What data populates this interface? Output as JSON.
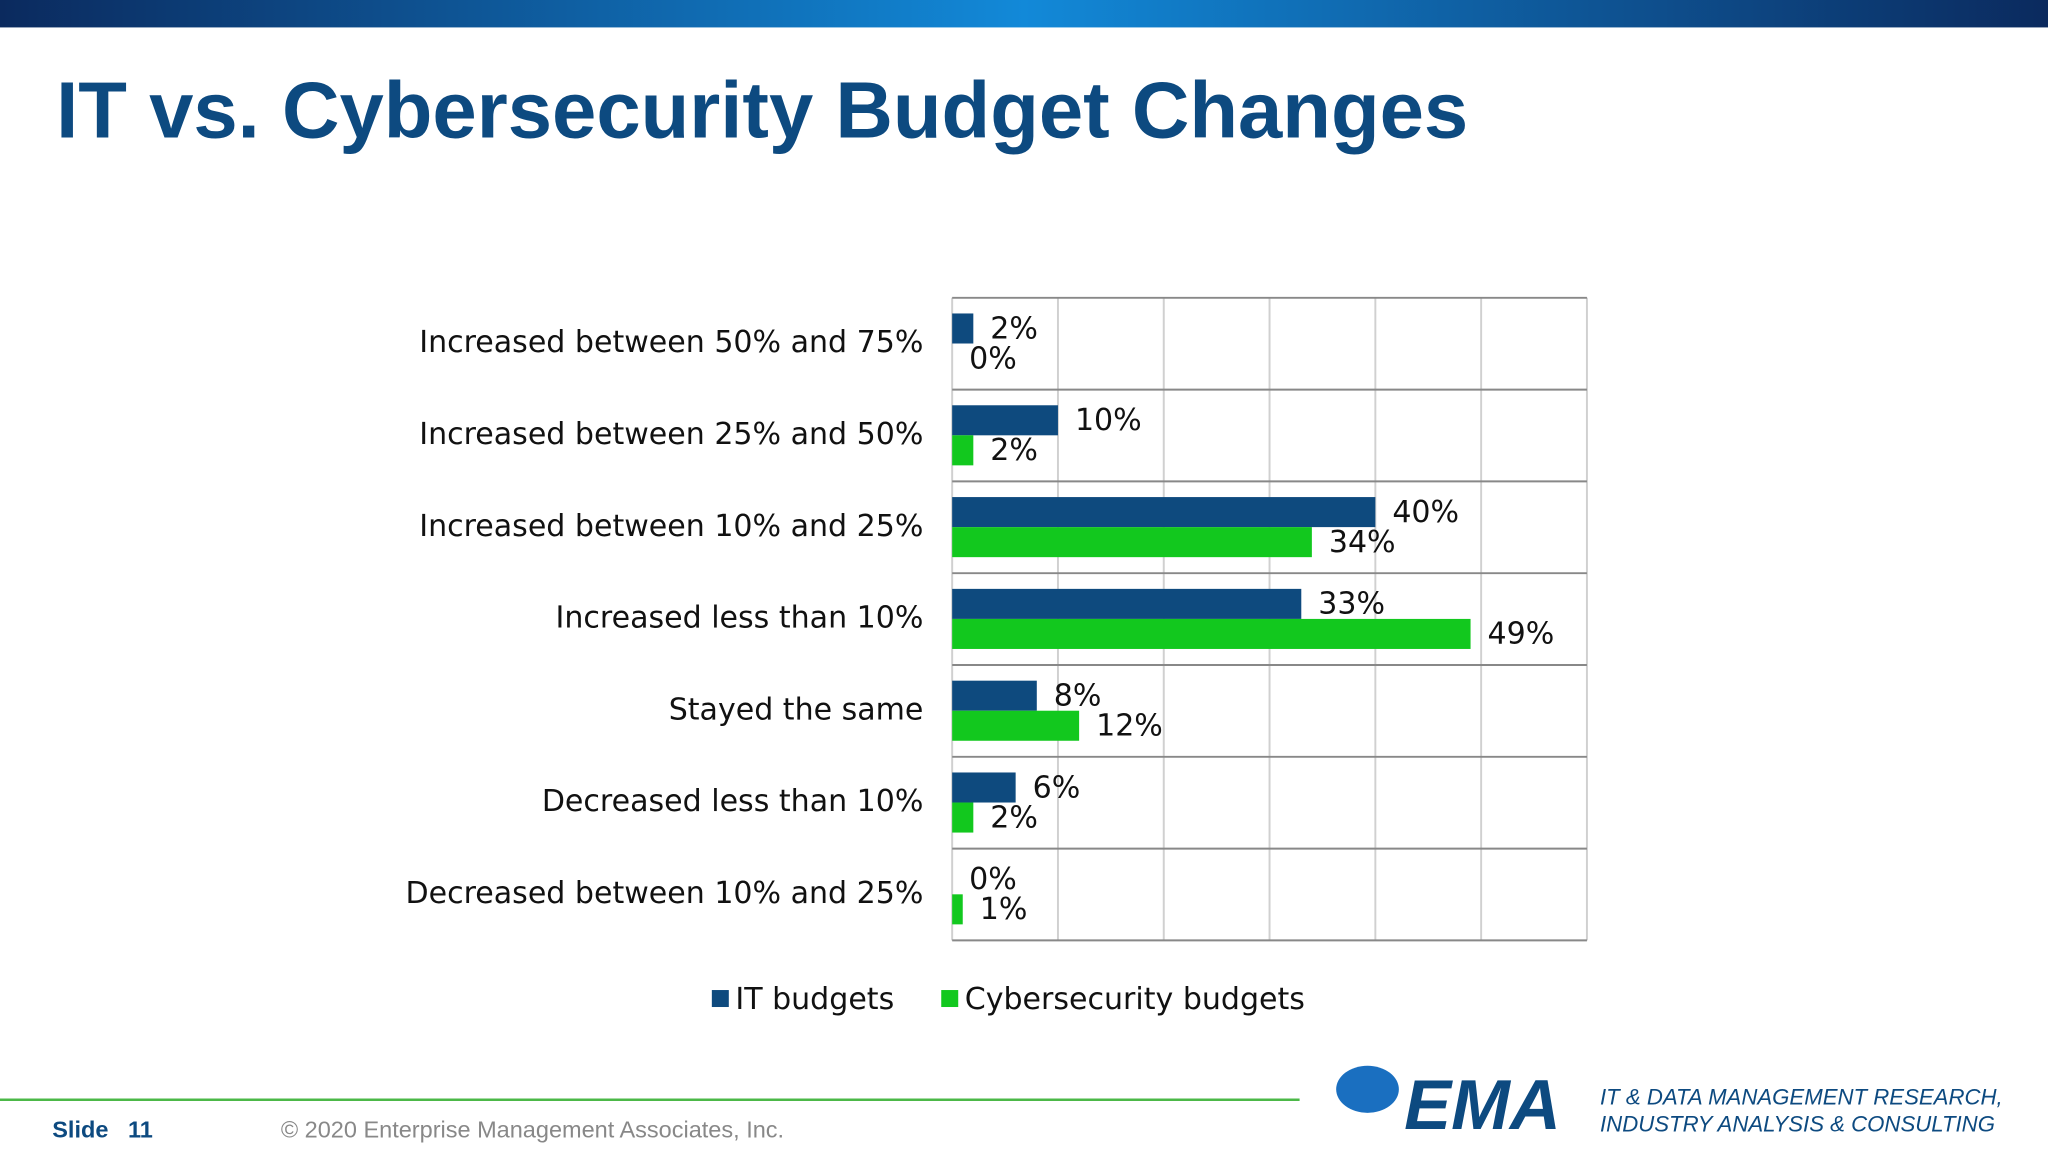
{
  "title": "IT vs. Cybersecurity Budget Changes",
  "slide": {
    "label": "Slide",
    "number": "11"
  },
  "footer": "© 2020  Enterprise Management Associates, Inc.",
  "logo": {
    "text": "EMA",
    "tagline": [
      "IT & DATA MANAGEMENT RESEARCH,",
      "INDUSTRY ANALYSIS & CONSULTING"
    ]
  },
  "chart_data": {
    "type": "hbar",
    "categories": [
      "Increased between 50% and 75%",
      "Increased between 25% and 50%",
      "Increased between 10% and 25%",
      "Increased less than 10%",
      "Stayed the same",
      "Decreased less than 10%",
      "Decreased between 10% and 25%"
    ],
    "series": [
      {
        "name": "IT budgets",
        "color": "#0e4a7e",
        "values": [
          2,
          10,
          40,
          33,
          8,
          6,
          0
        ],
        "value_labels": [
          "2%",
          "10%",
          "40%",
          "33%",
          "8%",
          "6%",
          "0%"
        ]
      },
      {
        "name": "Cybersecurity budgets",
        "color": "#12c81e",
        "values": [
          0,
          2,
          34,
          49,
          12,
          2,
          1
        ],
        "value_labels": [
          "0%",
          "2%",
          "34%",
          "49%",
          "12%",
          "2%",
          "1%"
        ]
      }
    ],
    "xlim": [
      0,
      60
    ],
    "xticks": [
      0,
      10,
      20,
      30,
      40,
      50,
      60
    ],
    "grid": true,
    "legend": "bottom"
  }
}
